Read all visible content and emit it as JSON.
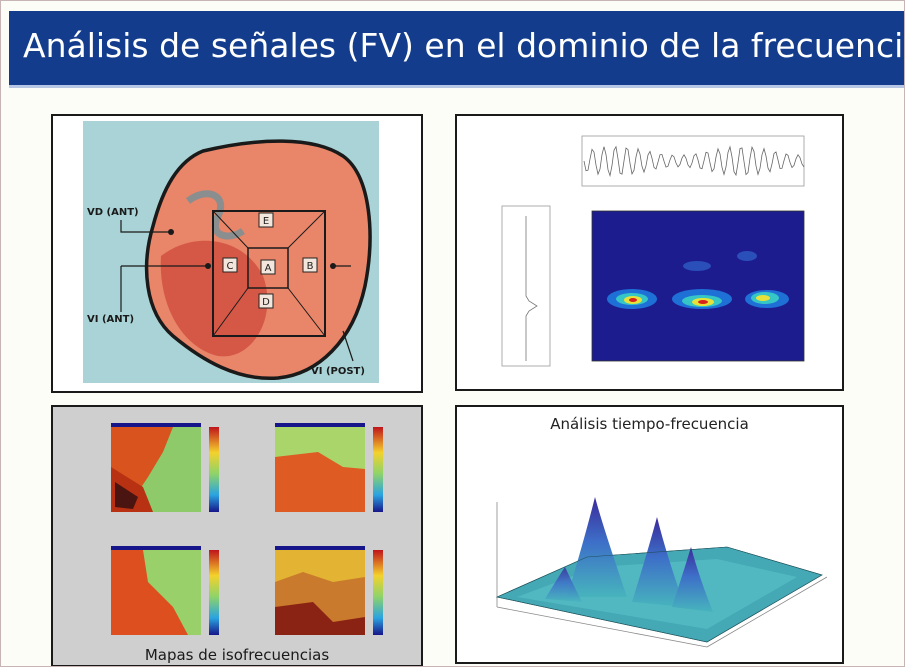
{
  "slide": {
    "title": "Análisis de señales (FV) en el dominio de la frecuencia"
  },
  "panel_heart": {
    "labels": {
      "vd_ant": "VD (ANT)",
      "vi_ant": "VI (ANT)",
      "vi_post": "VI (POST)",
      "region_a": "A",
      "region_b": "B",
      "region_c": "C",
      "region_d": "D",
      "region_e": "E"
    }
  },
  "panel_tf_analysis": {
    "title": "Análisis tiempo-frecuencia"
  },
  "panel_isofrequency": {
    "caption": "Mapas de isofrecuencias"
  },
  "colors": {
    "title_bar": "#133d8c",
    "title_text": "#ffffff",
    "heart_bg": "#a9d3d6",
    "heart_fill": "#e98568",
    "spectrogram_bg": "#1c1c8e",
    "surface": "#44a8b5"
  }
}
